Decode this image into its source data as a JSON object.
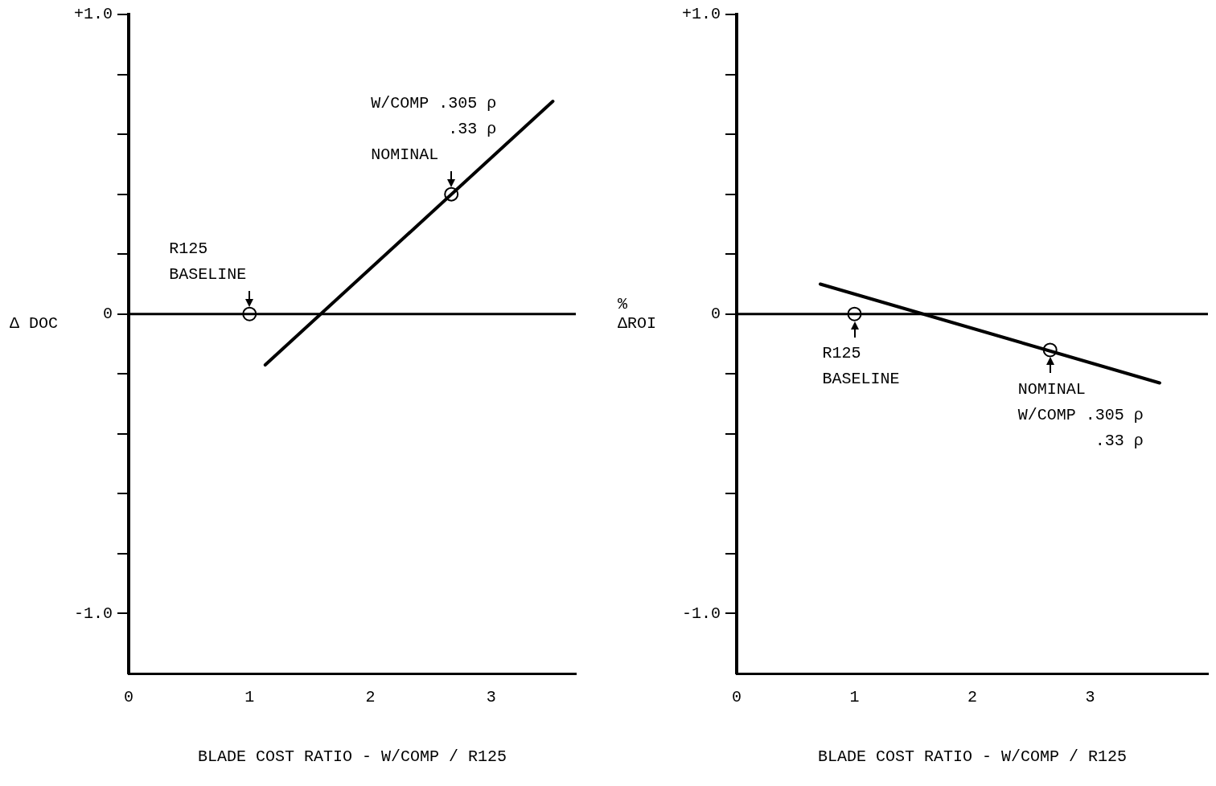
{
  "chart_data": [
    {
      "type": "line",
      "ylabel": "Δ DOC",
      "xlabel": "BLADE COST RATIO - W/COMP / R125",
      "xlim": [
        0,
        3.7
      ],
      "xticks": [
        0,
        1,
        2,
        3
      ],
      "ylim": [
        -1.2,
        1.0
      ],
      "yticks": [
        {
          "value": 1.0,
          "label": "+1.0"
        },
        {
          "value": 0.8,
          "label": null
        },
        {
          "value": 0.6,
          "label": null
        },
        {
          "value": 0.4,
          "label": null
        },
        {
          "value": 0.2,
          "label": null
        },
        0,
        {
          "value": -0.2,
          "label": null
        },
        {
          "value": -0.4,
          "label": null
        },
        {
          "value": -0.6,
          "label": null
        },
        {
          "value": -0.8,
          "label": null
        },
        {
          "value": -1.0,
          "label": "-1.0"
        }
      ],
      "ref_lines": [
        {
          "axis": "y",
          "value": 0,
          "color": "#000000"
        }
      ],
      "series": [
        {
          "type": "line",
          "color": "#000000",
          "x": [
            1.13,
            3.51
          ],
          "values": [
            -0.17,
            0.71
          ]
        },
        {
          "type": "scatter",
          "color": "#000000",
          "marker": "circle",
          "x": [
            1,
            2.67
          ],
          "values": [
            0,
            0.4
          ]
        }
      ],
      "annotations": [
        {
          "text": "R125\nBASELINE",
          "x": 1,
          "y": 0
        },
        {
          "text": "W/COMP .305 ρ\n.33 ρ\nNOMINAL",
          "x": 2.67,
          "y": 0.4
        }
      ]
    },
    {
      "type": "line",
      "ylabel": "%\nΔROI",
      "xlabel": "BLADE COST RATIO - W/COMP / R125",
      "xlim": [
        0,
        4.0
      ],
      "xticks": [
        0,
        1,
        2,
        3
      ],
      "ylim": [
        -1.2,
        1.0
      ],
      "yticks": [
        {
          "value": 1.0,
          "label": "+1.0"
        },
        {
          "value": 0.8,
          "label": null
        },
        {
          "value": 0.6,
          "label": null
        },
        {
          "value": 0.4,
          "label": null
        },
        {
          "value": 0.2,
          "label": null
        },
        0,
        {
          "value": -0.2,
          "label": null
        },
        {
          "value": -0.4,
          "label": null
        },
        {
          "value": -0.6,
          "label": null
        },
        {
          "value": -0.8,
          "label": null
        },
        {
          "value": -1.0,
          "label": "-1.0"
        }
      ],
      "ref_lines": [
        {
          "axis": "y",
          "value": 0,
          "color": "#000000"
        }
      ],
      "series": [
        {
          "type": "line",
          "color": "#000000",
          "x": [
            0.71,
            3.59
          ],
          "values": [
            0.1,
            -0.23
          ]
        },
        {
          "type": "scatter",
          "color": "#000000",
          "marker": "circle",
          "x": [
            1,
            2.66
          ],
          "values": [
            0,
            -0.12
          ]
        }
      ],
      "annotations": [
        {
          "text": "R125\nBASELINE",
          "x": 1,
          "y": 0
        },
        {
          "text": "NOMINAL\nW/COMP .305 ρ\n.33 ρ",
          "x": 2.66,
          "y": -0.12
        }
      ]
    }
  ]
}
